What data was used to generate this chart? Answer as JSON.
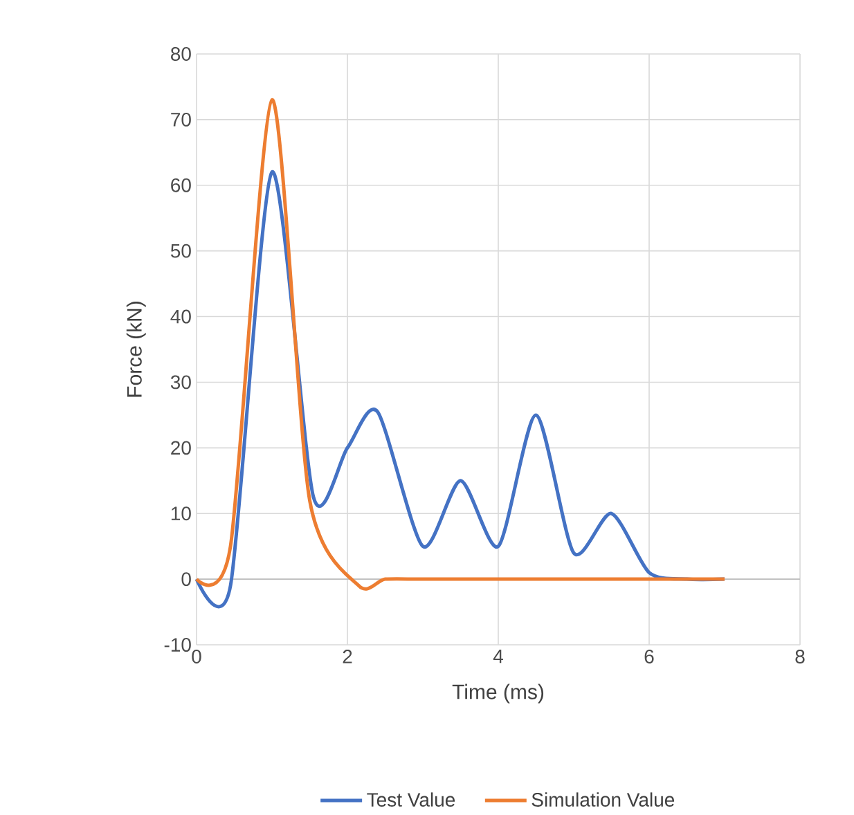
{
  "chart_data": {
    "type": "line",
    "xlabel": "Time (ms)",
    "ylabel": "Force (kN)",
    "xlim": [
      0,
      8
    ],
    "ylim": [
      -10,
      80
    ],
    "xticks": [
      0,
      2,
      4,
      6,
      8
    ],
    "yticks": [
      -10,
      0,
      10,
      20,
      30,
      40,
      50,
      60,
      70,
      80
    ],
    "grid": true,
    "legend": "bottom",
    "marker": "none",
    "line_style": "solid",
    "series": [
      {
        "name": "Test Value",
        "color": "#4472c4",
        "x": [
          0,
          0.45,
          1,
          1.55,
          2,
          2.4,
          3,
          3.5,
          4,
          4.5,
          5,
          5.5,
          6,
          6.5,
          7
        ],
        "values": [
          0,
          -1,
          62,
          12.5,
          20,
          25.5,
          5,
          15,
          5,
          25,
          4,
          10,
          1,
          0,
          0
        ]
      },
      {
        "name": "Simulation Value",
        "color": "#ed7d31",
        "x": [
          0,
          0.45,
          1,
          1.5,
          2.15,
          2.5,
          3,
          3.5,
          4,
          4.5,
          5,
          5.5,
          6,
          6.5,
          7
        ],
        "values": [
          0,
          5,
          73,
          12,
          -1,
          0,
          0,
          0,
          0,
          0,
          0,
          0,
          0,
          0,
          0
        ]
      }
    ]
  }
}
